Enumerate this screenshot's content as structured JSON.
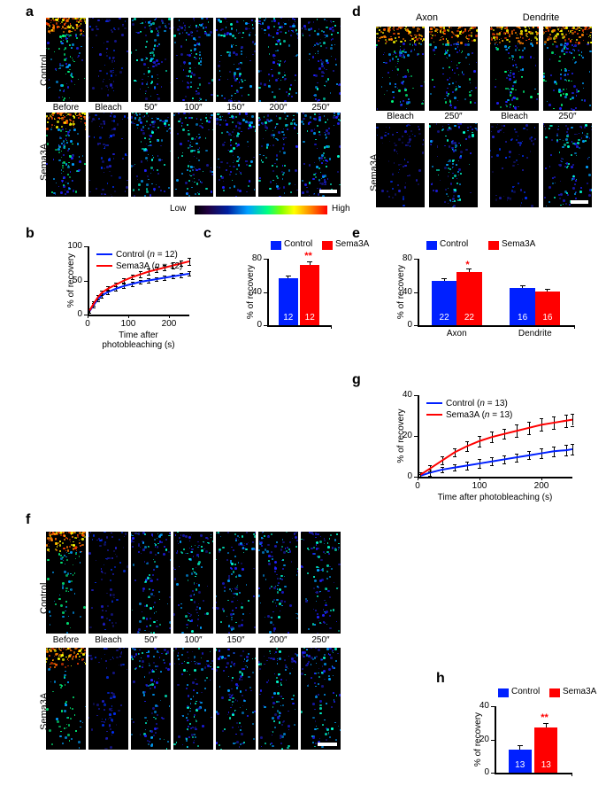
{
  "colors": {
    "control": "#0020ff",
    "sema3a": "#ff0000",
    "axis": "#000000",
    "bg": "#ffffff",
    "sig": "#ff0000",
    "scalebar": "#ffffff"
  },
  "panel_a": {
    "label": "a",
    "rows": [
      "Control",
      "Sema3A"
    ],
    "timepoints": [
      "Before",
      "Bleach",
      "50″",
      "100″",
      "150″",
      "200″",
      "250″"
    ],
    "gradient_labels": [
      "Low",
      "High"
    ]
  },
  "panel_b": {
    "label": "b",
    "type": "line",
    "xlabel": "Time after photobleaching (s)",
    "ylabel": "% of recovery",
    "xlim": [
      0,
      250
    ],
    "xticks": [
      0,
      100,
      200
    ],
    "ylim": [
      0,
      100
    ],
    "yticks": [
      0,
      50,
      100
    ],
    "series": [
      {
        "name": "Control",
        "n": 12,
        "color": "#0020ff",
        "x": [
          5,
          15,
          25,
          35,
          50,
          70,
          90,
          110,
          130,
          150,
          170,
          190,
          210,
          230,
          250
        ],
        "y": [
          5,
          14,
          22,
          28,
          33,
          38,
          42,
          45,
          48,
          50,
          52,
          54,
          56,
          58,
          60
        ],
        "err": [
          3,
          3,
          3,
          3,
          3,
          3,
          3,
          3,
          3,
          3,
          3,
          3,
          3,
          3,
          3
        ]
      },
      {
        "name": "Sema3A",
        "n": 12,
        "color": "#ff0000",
        "x": [
          5,
          15,
          25,
          35,
          50,
          70,
          90,
          110,
          130,
          150,
          170,
          190,
          210,
          230,
          250
        ],
        "y": [
          6,
          16,
          25,
          32,
          38,
          44,
          50,
          55,
          59,
          63,
          66,
          69,
          72,
          75,
          78
        ],
        "err": [
          3,
          3,
          3,
          3,
          3,
          3,
          3,
          3,
          4,
          4,
          4,
          4,
          4,
          4,
          5
        ]
      }
    ]
  },
  "panel_c": {
    "label": "c",
    "type": "bar",
    "ylabel": "% of recovery",
    "ylim": [
      0,
      80
    ],
    "yticks": [
      0,
      40,
      80
    ],
    "bars": [
      {
        "name": "Control",
        "value": 57,
        "err": 3,
        "n": 12,
        "color": "#0020ff"
      },
      {
        "name": "Sema3A",
        "value": 73,
        "err": 4,
        "n": 12,
        "color": "#ff0000"
      }
    ],
    "sig": "**"
  },
  "panel_d": {
    "label": "d",
    "headers": [
      "Axon",
      "Dendrite"
    ],
    "row": "Sema3A",
    "cols": [
      "Bleach",
      "250″",
      "Bleach",
      "250″"
    ]
  },
  "panel_e": {
    "label": "e",
    "type": "bar",
    "ylabel": "% of recovery",
    "ylim": [
      0,
      80
    ],
    "yticks": [
      0,
      40,
      80
    ],
    "groups": [
      "Axon",
      "Dendrite"
    ],
    "series_names": [
      "Control",
      "Sema3A"
    ],
    "bars": [
      {
        "group": "Axon",
        "series": "Control",
        "value": 53,
        "err": 4,
        "n": 22,
        "color": "#0020ff"
      },
      {
        "group": "Axon",
        "series": "Sema3A",
        "value": 64,
        "err": 4,
        "n": 22,
        "color": "#ff0000"
      },
      {
        "group": "Dendrite",
        "series": "Control",
        "value": 45,
        "err": 3,
        "n": 16,
        "color": "#0020ff"
      },
      {
        "group": "Dendrite",
        "series": "Sema3A",
        "value": 41,
        "err": 3,
        "n": 16,
        "color": "#ff0000"
      }
    ],
    "sig": [
      {
        "group": "Axon",
        "mark": "*"
      }
    ]
  },
  "panel_f": {
    "label": "f",
    "rows": [
      "Control",
      "Sema3A"
    ],
    "timepoints": [
      "Before",
      "Bleach",
      "50″",
      "100″",
      "150″",
      "200″",
      "250″"
    ]
  },
  "panel_g": {
    "label": "g",
    "type": "line",
    "xlabel": "Time after photobleaching (s)",
    "ylabel": "% of recovery",
    "xlim": [
      0,
      250
    ],
    "xticks": [
      0,
      100,
      200
    ],
    "ylim": [
      0,
      40
    ],
    "yticks": [
      0,
      20,
      40
    ],
    "series": [
      {
        "name": "Control",
        "n": 13,
        "color": "#0020ff",
        "x": [
          5,
          20,
          40,
          60,
          80,
          100,
          120,
          140,
          160,
          180,
          200,
          220,
          240,
          250
        ],
        "y": [
          0.5,
          2,
          3.5,
          4.5,
          5.5,
          6.5,
          7.5,
          8.5,
          9.5,
          10.5,
          11.5,
          12.5,
          13,
          13.5
        ],
        "err": [
          1,
          1.5,
          1.5,
          1.5,
          2,
          2,
          2,
          2,
          2,
          2,
          2.5,
          2.5,
          2.5,
          2.5
        ]
      },
      {
        "name": "Sema3A",
        "n": 13,
        "color": "#ff0000",
        "x": [
          5,
          20,
          40,
          60,
          80,
          100,
          120,
          140,
          160,
          180,
          200,
          220,
          240,
          250
        ],
        "y": [
          1,
          4,
          8,
          12,
          15,
          17.5,
          19.5,
          21,
          22.5,
          24,
          25.5,
          26.5,
          27.5,
          28
        ],
        "err": [
          1,
          1.5,
          2,
          2,
          2.5,
          2.5,
          2.5,
          2.5,
          3,
          3,
          3,
          3,
          3,
          3
        ]
      }
    ]
  },
  "panel_h": {
    "label": "h",
    "type": "bar",
    "ylabel": "% of recovery",
    "ylim": [
      0,
      40
    ],
    "yticks": [
      0,
      20,
      40
    ],
    "bars": [
      {
        "name": "Control",
        "value": 14,
        "err": 2.5,
        "n": 13,
        "color": "#0020ff"
      },
      {
        "name": "Sema3A",
        "value": 27,
        "err": 3,
        "n": 13,
        "color": "#ff0000"
      }
    ],
    "sig": "**"
  }
}
